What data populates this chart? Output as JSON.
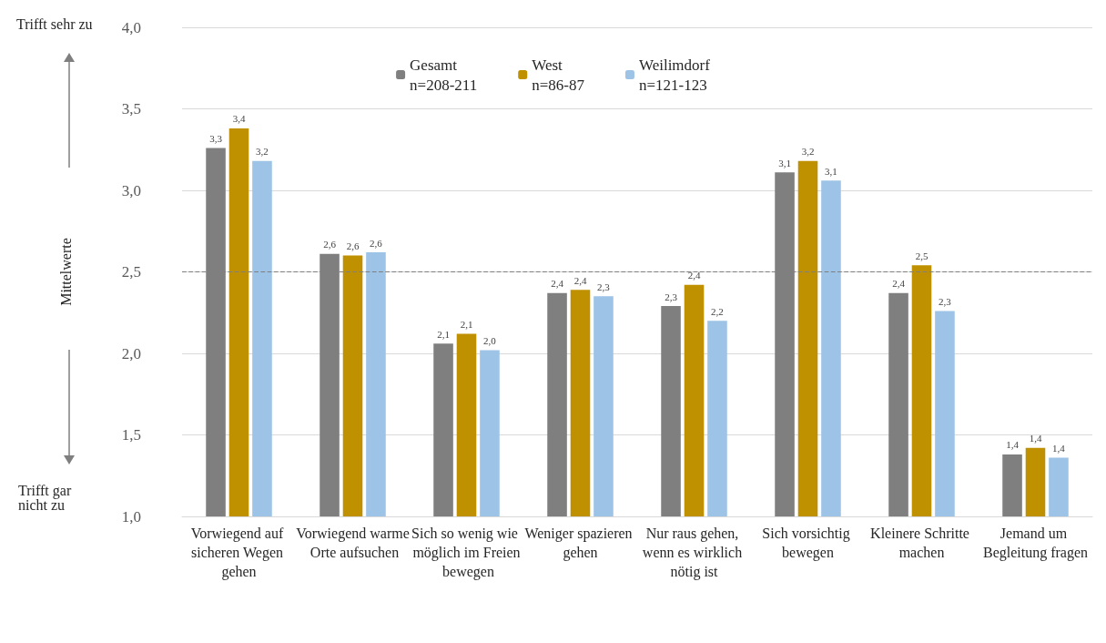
{
  "chart_data": {
    "type": "bar",
    "ylabel": "Mittelwerte",
    "categories": [
      "Vorwiegend auf sicheren Wegen gehen",
      "Vorwiegend warme Orte aufsuchen",
      "Sich so wenig wie möglich im Freien bewegen",
      "Weniger spazieren gehen",
      "Nur raus gehen, wenn es wirklich nötig ist",
      "Sich vorsichtig bewegen",
      "Kleinere Schritte machen",
      "Jemand um Begleitung fragen"
    ],
    "series": [
      {
        "name": "Gesamt\nn=208-211",
        "color": "#7f7f7f",
        "values": [
          3.26,
          2.61,
          2.06,
          2.37,
          2.29,
          3.11,
          2.37,
          1.38
        ],
        "value_labels": [
          "3,3",
          "2,6",
          "2,1",
          "2,4",
          "2,3",
          "3,1",
          "2,4",
          "1,4"
        ]
      },
      {
        "name": "West\nn=86-87",
        "color": "#bf9000",
        "values": [
          3.38,
          2.6,
          2.12,
          2.39,
          2.42,
          3.18,
          2.54,
          1.42
        ],
        "value_labels": [
          "3,4",
          "2,6",
          "2,1",
          "2,4",
          "2,4",
          "3,2",
          "2,5",
          "1,4"
        ]
      },
      {
        "name": "Weilimdorf\nn=121-123",
        "color": "#9dc3e6",
        "values": [
          3.18,
          2.62,
          2.02,
          2.35,
          2.2,
          3.06,
          2.26,
          1.36
        ],
        "value_labels": [
          "3,2",
          "2,6",
          "2,0",
          "2,3",
          "2,2",
          "3,1",
          "2,3",
          "1,4"
        ]
      }
    ],
    "ylim": [
      1,
      4
    ],
    "yticks": [
      {
        "value": 1,
        "label": "1,0"
      },
      {
        "value": 1.5,
        "label": "1,5"
      },
      {
        "value": 2,
        "label": "2,0"
      },
      {
        "value": 2.5,
        "label": "2,5"
      },
      {
        "value": 3,
        "label": "3,0"
      },
      {
        "value": 3.5,
        "label": "3,5"
      },
      {
        "value": 4,
        "label": "4,0"
      }
    ],
    "ref_lines": [
      {
        "axis": "y",
        "value": 2.5,
        "color": "#7f7f7f",
        "line_style": "dashed"
      }
    ],
    "annotations": [
      "Trifft sehr zu",
      "Trifft gar nicht zu"
    ],
    "grid": "y",
    "legend": "top"
  }
}
